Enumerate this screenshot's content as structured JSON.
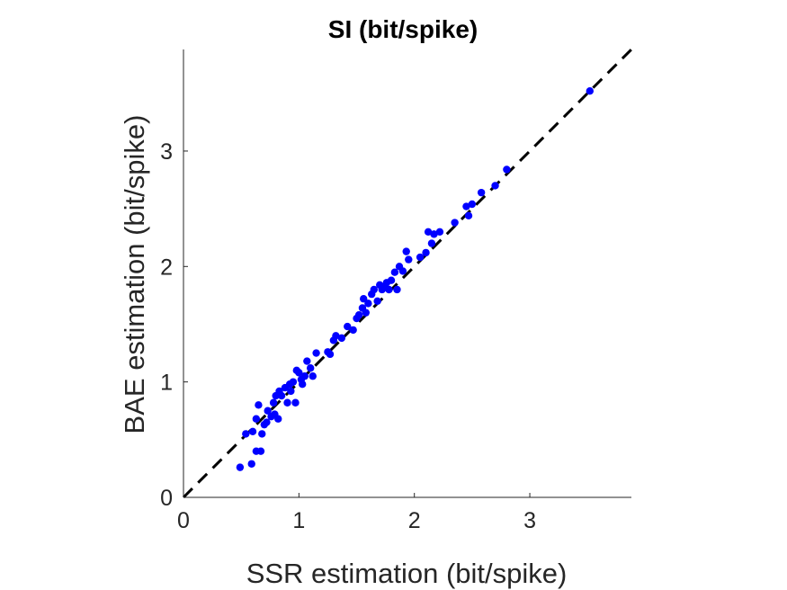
{
  "chart_data": {
    "type": "scatter",
    "title": "SI (bit/spike)",
    "xlabel": "SSR estimation (bit/spike)",
    "ylabel": "BAE estimation (bit/spike)",
    "xlim": [
      0,
      3.88
    ],
    "ylim": [
      0,
      3.88
    ],
    "xticks": [
      "0",
      "1",
      "2",
      "3"
    ],
    "yticks": [
      "0",
      "1",
      "2",
      "3"
    ],
    "grid": false,
    "legend": "none",
    "reference_line": {
      "from": [
        0,
        0
      ],
      "to": [
        3.88,
        3.88
      ],
      "style": "dashed",
      "color": "#000000"
    },
    "series": [
      {
        "color": "#0000ff",
        "x": [
          0.49,
          0.54,
          0.59,
          0.6,
          0.63,
          0.63,
          0.65,
          0.67,
          0.68,
          0.7,
          0.72,
          0.73,
          0.76,
          0.78,
          0.79,
          0.8,
          0.82,
          0.83,
          0.85,
          0.88,
          0.9,
          0.92,
          0.93,
          0.95,
          0.97,
          0.98,
          1.0,
          1.02,
          1.03,
          1.05,
          1.07,
          1.1,
          1.12,
          1.15,
          1.25,
          1.27,
          1.3,
          1.32,
          1.37,
          1.42,
          1.47,
          1.5,
          1.52,
          1.55,
          1.56,
          1.58,
          1.6,
          1.63,
          1.65,
          1.68,
          1.7,
          1.72,
          1.74,
          1.76,
          1.78,
          1.8,
          1.83,
          1.85,
          1.87,
          1.9,
          1.93,
          1.95,
          2.05,
          2.1,
          2.12,
          2.15,
          2.17,
          2.22,
          2.35,
          2.45,
          2.47,
          2.5,
          2.58,
          2.7,
          2.8,
          3.52
        ],
        "y": [
          0.26,
          0.55,
          0.29,
          0.57,
          0.4,
          0.68,
          0.8,
          0.4,
          0.55,
          0.63,
          0.65,
          0.75,
          0.7,
          0.82,
          0.72,
          0.88,
          0.68,
          0.92,
          0.88,
          0.95,
          0.82,
          0.98,
          0.92,
          1.0,
          0.82,
          1.1,
          1.08,
          1.02,
          0.98,
          1.05,
          1.18,
          1.12,
          1.05,
          1.25,
          1.26,
          1.24,
          1.36,
          1.4,
          1.38,
          1.48,
          1.45,
          1.55,
          1.58,
          1.64,
          1.72,
          1.6,
          1.68,
          1.76,
          1.8,
          1.7,
          1.84,
          1.8,
          1.82,
          1.86,
          1.8,
          1.88,
          1.95,
          1.8,
          2.0,
          1.96,
          2.13,
          2.06,
          2.08,
          2.12,
          2.3,
          2.2,
          2.28,
          2.3,
          2.38,
          2.52,
          2.44,
          2.54,
          2.64,
          2.7,
          2.84,
          3.52
        ]
      }
    ]
  }
}
